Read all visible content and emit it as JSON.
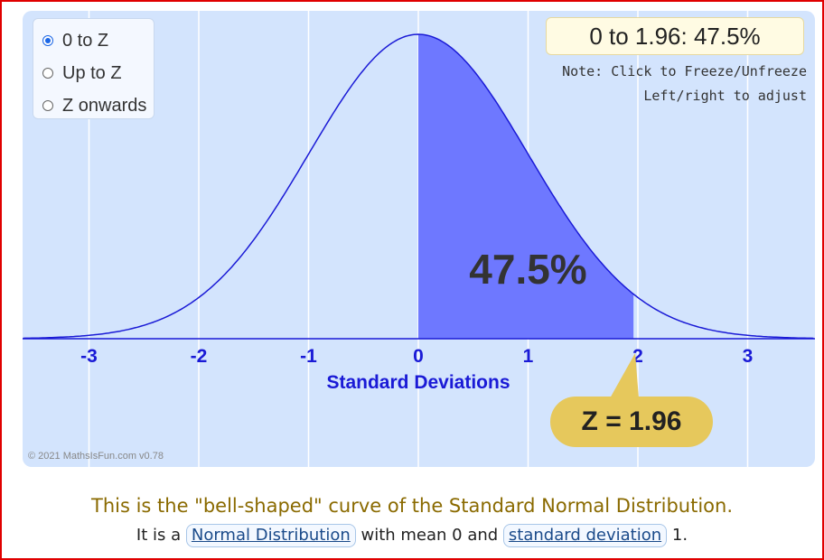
{
  "options": {
    "items": [
      {
        "label": "0 to Z",
        "selected": true
      },
      {
        "label": "Up to Z",
        "selected": false
      },
      {
        "label": "Z onwards",
        "selected": false
      }
    ]
  },
  "result": {
    "text": "0 to 1.96: 47.5%"
  },
  "notes": {
    "line1": "Note: Click to Freeze/Unfreeze",
    "line2": "Left/right to adjust"
  },
  "chart_data": {
    "type": "area",
    "distribution": "standard normal",
    "xlabel": "Standard Deviations",
    "x_ticks": [
      "-3",
      "-2",
      "-1",
      "0",
      "1",
      "2",
      "3"
    ],
    "xlim": [
      -3.6,
      3.6
    ],
    "shaded_from": 0,
    "shaded_to": 1.96,
    "area_label": "47.5%",
    "z_label": "Z = 1.96",
    "colors": {
      "curve": "#1a1ad6",
      "fill": "#6e78ff",
      "axis": "#1a1ad6"
    }
  },
  "copyright": "© 2021 MathsIsFun.com v0.78",
  "caption": {
    "line1": "This is the \"bell-shaped\" curve of the Standard Normal Distribution.",
    "before_link1": "It is a ",
    "link1": "Normal Distribution",
    "between": " with mean 0 and ",
    "link2": "standard deviation",
    "after": " 1."
  }
}
